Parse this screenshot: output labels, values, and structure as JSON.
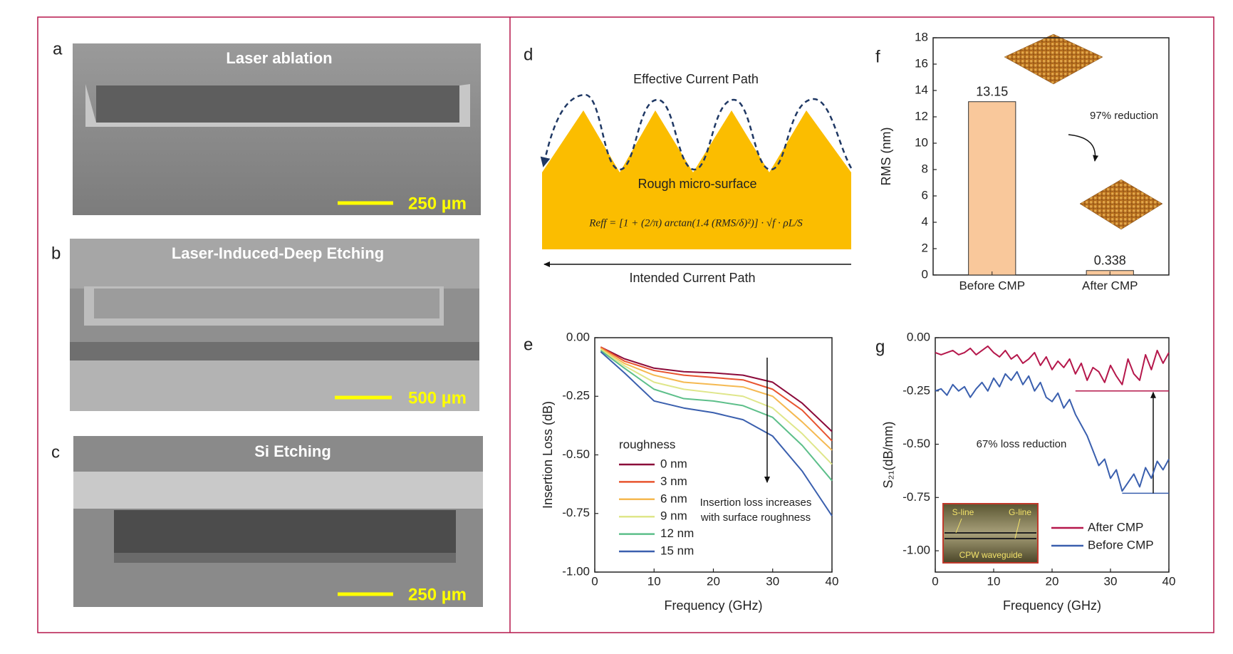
{
  "panels": {
    "a": {
      "label": "a",
      "title": "Laser ablation",
      "scale_bar": "250 µm"
    },
    "b": {
      "label": "b",
      "title": "Laser-Induced-Deep Etching",
      "scale_bar": "500 µm"
    },
    "c": {
      "label": "c",
      "title": "Si Etching",
      "scale_bar": "250 µm"
    },
    "d": {
      "label": "d",
      "top_text": "Effective  Current Path",
      "surface_text": "Rough micro-surface",
      "formula": "Reff = [1 + (2/π) arctan(1.4 (RMS/δ)²)] · √f · ρL/S",
      "bottom_text": "Intended Current Path"
    }
  },
  "chart_data": [
    {
      "type": "bar",
      "panel_label": "f",
      "ylabel": "RMS (nm)",
      "categories": [
        "Before CMP",
        "After CMP"
      ],
      "values": [
        13.15,
        0.338
      ],
      "color": "#f9c89b",
      "ylim": [
        0,
        18
      ],
      "yticks": [
        0,
        2,
        4,
        6,
        8,
        10,
        12,
        14,
        16,
        18
      ],
      "grid": false,
      "annotations": [
        "97% reduction"
      ]
    },
    {
      "type": "line",
      "panel_label": "e",
      "xlabel": "Frequency (GHz)",
      "ylabel": "Insertion Loss (dB)",
      "x": [
        1,
        5,
        10,
        15,
        20,
        25,
        30,
        35,
        40
      ],
      "series": [
        {
          "name": "0 nm",
          "color": "#8b0a3a",
          "values": [
            -0.04,
            -0.09,
            -0.13,
            -0.145,
            -0.15,
            -0.16,
            -0.19,
            -0.28,
            -0.4
          ]
        },
        {
          "name": "3 nm",
          "color": "#e8542f",
          "values": [
            -0.04,
            -0.1,
            -0.14,
            -0.16,
            -0.17,
            -0.18,
            -0.22,
            -0.31,
            -0.44
          ]
        },
        {
          "name": "6 nm",
          "color": "#f5b951",
          "values": [
            -0.045,
            -0.11,
            -0.16,
            -0.19,
            -0.2,
            -0.21,
            -0.25,
            -0.36,
            -0.48
          ]
        },
        {
          "name": "9 nm",
          "color": "#dfe68a",
          "values": [
            -0.05,
            -0.12,
            -0.19,
            -0.22,
            -0.235,
            -0.25,
            -0.3,
            -0.41,
            -0.54
          ]
        },
        {
          "name": "12 nm",
          "color": "#5dbf8a",
          "values": [
            -0.055,
            -0.13,
            -0.22,
            -0.26,
            -0.27,
            -0.29,
            -0.34,
            -0.46,
            -0.61
          ]
        },
        {
          "name": "15 nm",
          "color": "#3a5fae",
          "values": [
            -0.06,
            -0.15,
            -0.27,
            -0.3,
            -0.32,
            -0.35,
            -0.42,
            -0.57,
            -0.76
          ]
        }
      ],
      "legend_title": "roughness",
      "legend": "lower left",
      "xlim": [
        0,
        40
      ],
      "xticks": [
        0,
        10,
        20,
        30,
        40
      ],
      "ylim": [
        -1,
        0
      ],
      "yticks": [
        {
          "value": 0,
          "label": "0.00"
        },
        {
          "value": -0.25,
          "label": "-0.25"
        },
        {
          "value": -0.5,
          "label": "-0.50"
        },
        {
          "value": -0.75,
          "label": "-0.75"
        },
        {
          "value": -1,
          "label": "-1.00"
        }
      ],
      "grid": false,
      "annotations": [
        "Insertion loss increases",
        "with surface roughness"
      ]
    },
    {
      "type": "line",
      "panel_label": "g",
      "xlabel": "Frequency (GHz)",
      "ylabel": "S₂₁(dB/mm)",
      "x": [
        0,
        1,
        2,
        3,
        4,
        5,
        6,
        7,
        8,
        9,
        10,
        11,
        12,
        13,
        14,
        15,
        16,
        17,
        18,
        19,
        20,
        21,
        22,
        23,
        24,
        25,
        26,
        27,
        28,
        29,
        30,
        31,
        32,
        33,
        34,
        35,
        36,
        37,
        38,
        39,
        40
      ],
      "series": [
        {
          "name": "After CMP",
          "color": "#b5174b",
          "values": [
            -0.07,
            -0.08,
            -0.07,
            -0.06,
            -0.08,
            -0.07,
            -0.05,
            -0.08,
            -0.06,
            -0.04,
            -0.07,
            -0.09,
            -0.06,
            -0.1,
            -0.08,
            -0.12,
            -0.1,
            -0.07,
            -0.13,
            -0.09,
            -0.15,
            -0.11,
            -0.14,
            -0.1,
            -0.17,
            -0.12,
            -0.2,
            -0.14,
            -0.16,
            -0.21,
            -0.13,
            -0.18,
            -0.22,
            -0.1,
            -0.17,
            -0.2,
            -0.08,
            -0.15,
            -0.06,
            -0.12,
            -0.07
          ]
        },
        {
          "name": "Before CMP",
          "color": "#3a5fae",
          "values": [
            -0.25,
            -0.24,
            -0.27,
            -0.22,
            -0.25,
            -0.23,
            -0.28,
            -0.24,
            -0.21,
            -0.25,
            -0.19,
            -0.23,
            -0.17,
            -0.2,
            -0.16,
            -0.22,
            -0.18,
            -0.25,
            -0.21,
            -0.28,
            -0.3,
            -0.26,
            -0.33,
            -0.29,
            -0.36,
            -0.41,
            -0.46,
            -0.53,
            -0.6,
            -0.57,
            -0.66,
            -0.62,
            -0.72,
            -0.68,
            -0.64,
            -0.7,
            -0.61,
            -0.66,
            -0.58,
            -0.62,
            -0.57
          ]
        }
      ],
      "legend": "lower right",
      "xlim": [
        0,
        40
      ],
      "xticks": [
        0,
        10,
        20,
        30,
        40
      ],
      "ylim": [
        -1.1,
        0
      ],
      "yticks": [
        {
          "value": 0,
          "label": "0.00"
        },
        {
          "value": -0.25,
          "label": "-0.25"
        },
        {
          "value": -0.5,
          "label": "-0.50"
        },
        {
          "value": -0.75,
          "label": "-0.75"
        },
        {
          "value": -1,
          "label": "-1.00"
        }
      ],
      "grid": false,
      "reference_lines": [
        {
          "y": -0.25,
          "x0": 24,
          "x1": 40,
          "color": "#b5174b"
        },
        {
          "y": -0.73,
          "x0": 32,
          "x1": 40,
          "color": "#3a5fae"
        }
      ],
      "annotations": [
        "67% loss reduction"
      ],
      "inset_labels": [
        "S-line",
        "G-line",
        "CPW  waveguide"
      ]
    }
  ]
}
